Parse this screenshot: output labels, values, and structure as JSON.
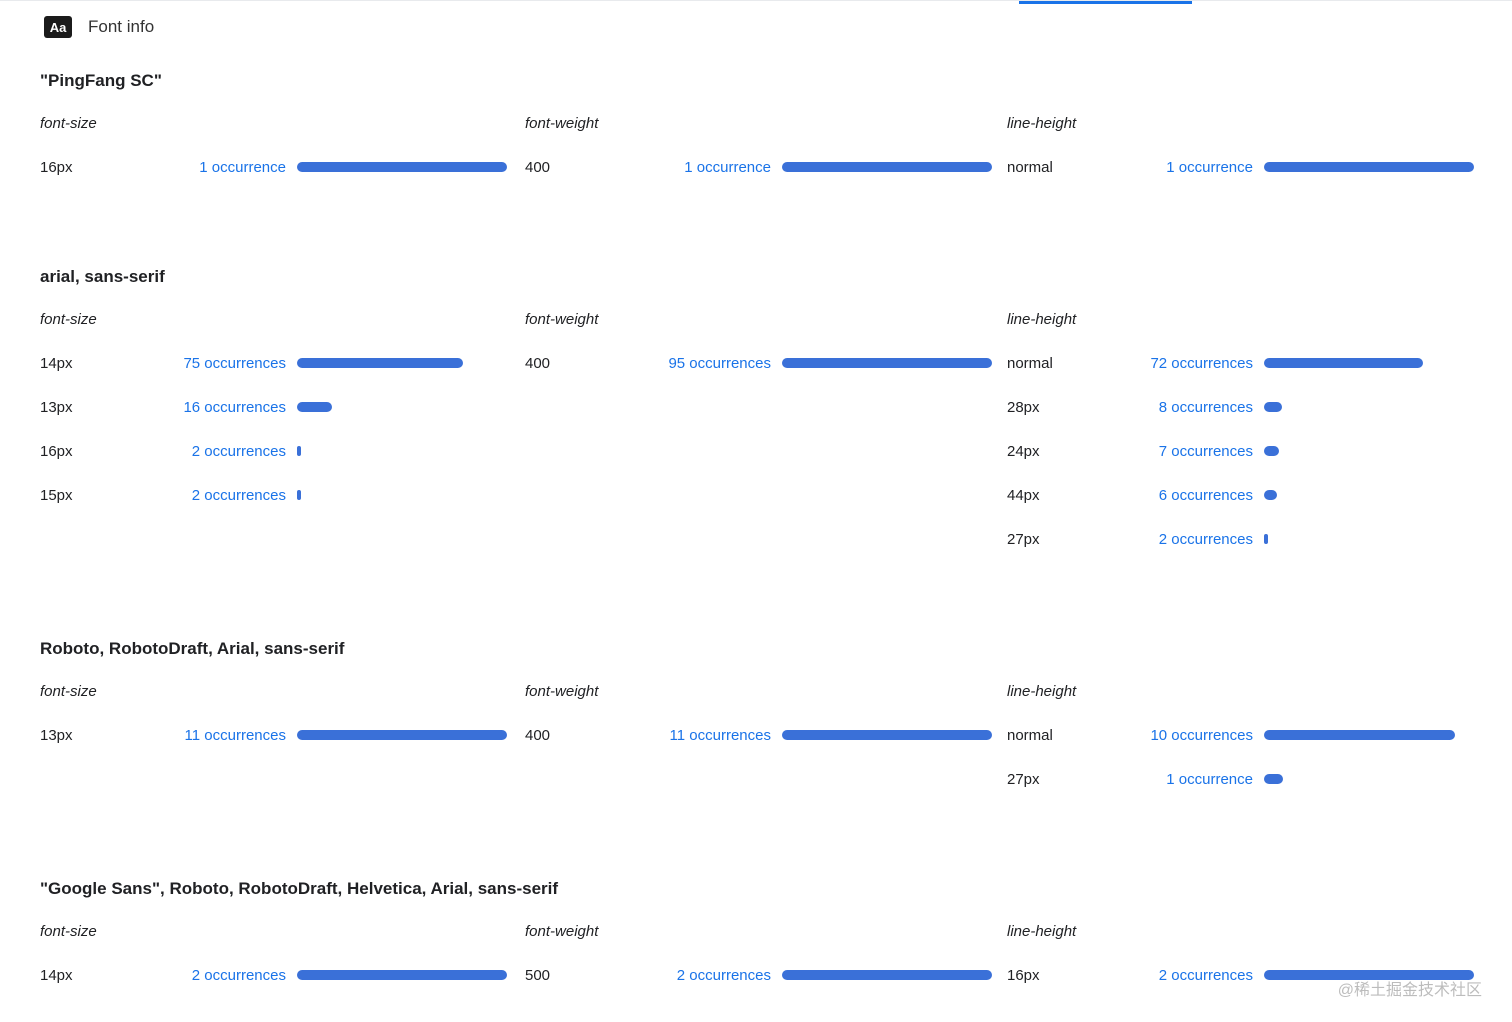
{
  "header": {
    "badge": "Aa",
    "title": "Font info"
  },
  "colors": {
    "link": "#1a73e8",
    "bar": "#3a70d8"
  },
  "watermark": "@稀土掘金技术社区",
  "sections": [
    {
      "family": "\"PingFang SC\"",
      "columns": [
        {
          "label": "font-size",
          "rows": [
            {
              "value": "16px",
              "occurrences": "1 occurrence",
              "count": 1
            }
          ]
        },
        {
          "label": "font-weight",
          "rows": [
            {
              "value": "400",
              "occurrences": "1 occurrence",
              "count": 1
            }
          ]
        },
        {
          "label": "line-height",
          "rows": [
            {
              "value": "normal",
              "occurrences": "1 occurrence",
              "count": 1
            }
          ]
        }
      ]
    },
    {
      "family": "arial, sans-serif",
      "columns": [
        {
          "label": "font-size",
          "rows": [
            {
              "value": "14px",
              "occurrences": "75 occurrences",
              "count": 75
            },
            {
              "value": "13px",
              "occurrences": "16 occurrences",
              "count": 16
            },
            {
              "value": "16px",
              "occurrences": "2 occurrences",
              "count": 2
            },
            {
              "value": "15px",
              "occurrences": "2 occurrences",
              "count": 2
            }
          ]
        },
        {
          "label": "font-weight",
          "rows": [
            {
              "value": "400",
              "occurrences": "95 occurrences",
              "count": 95
            }
          ]
        },
        {
          "label": "line-height",
          "rows": [
            {
              "value": "normal",
              "occurrences": "72 occurrences",
              "count": 72
            },
            {
              "value": "28px",
              "occurrences": "8 occurrences",
              "count": 8
            },
            {
              "value": "24px",
              "occurrences": "7 occurrences",
              "count": 7
            },
            {
              "value": "44px",
              "occurrences": "6 occurrences",
              "count": 6
            },
            {
              "value": "27px",
              "occurrences": "2 occurrences",
              "count": 2
            }
          ]
        }
      ]
    },
    {
      "family": "Roboto, RobotoDraft, Arial, sans-serif",
      "columns": [
        {
          "label": "font-size",
          "rows": [
            {
              "value": "13px",
              "occurrences": "11 occurrences",
              "count": 11
            }
          ]
        },
        {
          "label": "font-weight",
          "rows": [
            {
              "value": "400",
              "occurrences": "11 occurrences",
              "count": 11
            }
          ]
        },
        {
          "label": "line-height",
          "rows": [
            {
              "value": "normal",
              "occurrences": "10 occurrences",
              "count": 10
            },
            {
              "value": "27px",
              "occurrences": "1 occurrence",
              "count": 1
            }
          ]
        }
      ]
    },
    {
      "family": "\"Google Sans\", Roboto, RobotoDraft, Helvetica, Arial, sans-serif",
      "columns": [
        {
          "label": "font-size",
          "rows": [
            {
              "value": "14px",
              "occurrences": "2 occurrences",
              "count": 2
            }
          ]
        },
        {
          "label": "font-weight",
          "rows": [
            {
              "value": "500",
              "occurrences": "2 occurrences",
              "count": 2
            }
          ]
        },
        {
          "label": "line-height",
          "rows": [
            {
              "value": "16px",
              "occurrences": "2 occurrences",
              "count": 2
            }
          ]
        }
      ]
    }
  ]
}
